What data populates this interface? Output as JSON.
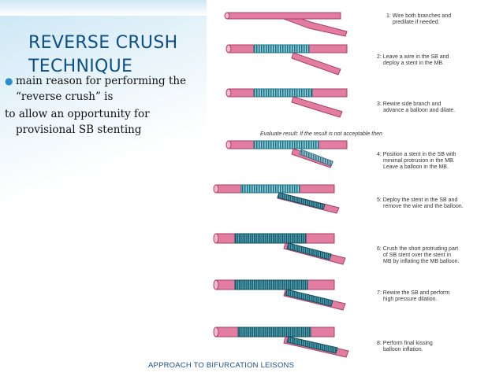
{
  "slide": {
    "title_line1": "REVERSE CRUSH",
    "title_line2": "TECHNIQUE",
    "bullet_line1": "main reason for performing the",
    "bullet_line2": "“reverse crush” is",
    "body_line1": "to allow an opportunity for",
    "body_line2": "provisional SB stenting",
    "footer": "APPROACH TO  BIFURCATION LEISONS"
  },
  "figure": {
    "steps": [
      {
        "line1": "1: Wire both branches and",
        "line2": "predilate if needed.",
        "line3": ""
      },
      {
        "line1": "2: Leave a wire in the SB and",
        "line2": "deploy a stent in the MB.",
        "line3": ""
      },
      {
        "line1": "3: Rewire side branch and",
        "line2": "advance a balloon and dilate.",
        "line3": ""
      },
      {
        "line1": "4: Position a stent in the SB with",
        "line2": "minimal protrusion in the MB.",
        "line3": "Leave a balloon in the MB."
      },
      {
        "line1": "5: Deploy the stent in the SB and",
        "line2": "remove the wire and the balloon.",
        "line3": ""
      },
      {
        "line1": "6: Crush the short protruding part",
        "line2": "of SB stent over the stent in",
        "line3": "MB by inflating the MB balloon."
      },
      {
        "line1": "7: Rewire the SB and perform",
        "line2": "high pressure dilation.",
        "line3": ""
      },
      {
        "line1": "8: Perform final kissing",
        "line2": "balloon inflation.",
        "line3": ""
      }
    ],
    "evaluate_text": "Evaluate result:  If the result is not acceptable then"
  },
  "colors": {
    "title": "#0d4f86",
    "bullet": "#2a8fc9",
    "vessel": "#e27da0",
    "vessel_dark": "#b44a72",
    "stent": "#2d8c9e",
    "footer": "#1a4f91"
  }
}
